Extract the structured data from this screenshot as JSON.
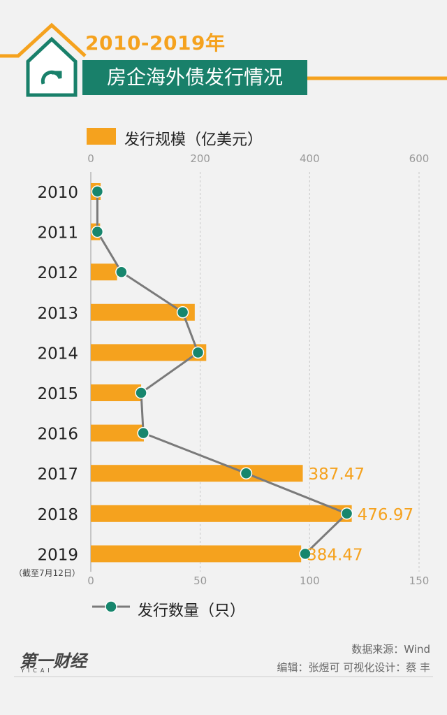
{
  "header": {
    "title_top": "2010-2019年",
    "title_main": "房企海外债发行情况"
  },
  "legend": {
    "bar_label": "发行规模（亿美元）",
    "line_label": "发行数量（只）"
  },
  "note": "（截至7月12日）",
  "footer": {
    "source": "数据来源：Wind",
    "credits": "编辑：张煜可   可视化设计：蔡 丰"
  },
  "logo": {
    "main": "第一财经",
    "sub": "YICAI"
  },
  "colors": {
    "bar": "#f5a21e",
    "line": "#7a7a7a",
    "marker": "#17866d",
    "title_bg": "#19806a"
  },
  "chart_data": {
    "type": "bar",
    "orientation": "horizontal",
    "categories": [
      "2010",
      "2011",
      "2012",
      "2013",
      "2014",
      "2015",
      "2016",
      "2017",
      "2018",
      "2019"
    ],
    "series": [
      {
        "name": "发行规模（亿美元）",
        "type": "bar",
        "axis": "top",
        "values": [
          18,
          17,
          48,
          190,
          211,
          92,
          97,
          387.47,
          476.97,
          384.47
        ],
        "labels": [
          "",
          "",
          "",
          "",
          "",
          "",
          "",
          "387.47",
          "476.97",
          "384.47"
        ]
      },
      {
        "name": "发行数量（只）",
        "type": "line",
        "axis": "bottom",
        "values": [
          3,
          3,
          14,
          42,
          49,
          23,
          24,
          71,
          117,
          98
        ]
      }
    ],
    "top_axis": {
      "ticks": [
        0,
        200,
        400,
        600
      ],
      "range": [
        0,
        600
      ]
    },
    "bottom_axis": {
      "ticks": [
        0,
        50,
        100,
        150
      ],
      "range": [
        0,
        150
      ]
    },
    "grid": true
  }
}
